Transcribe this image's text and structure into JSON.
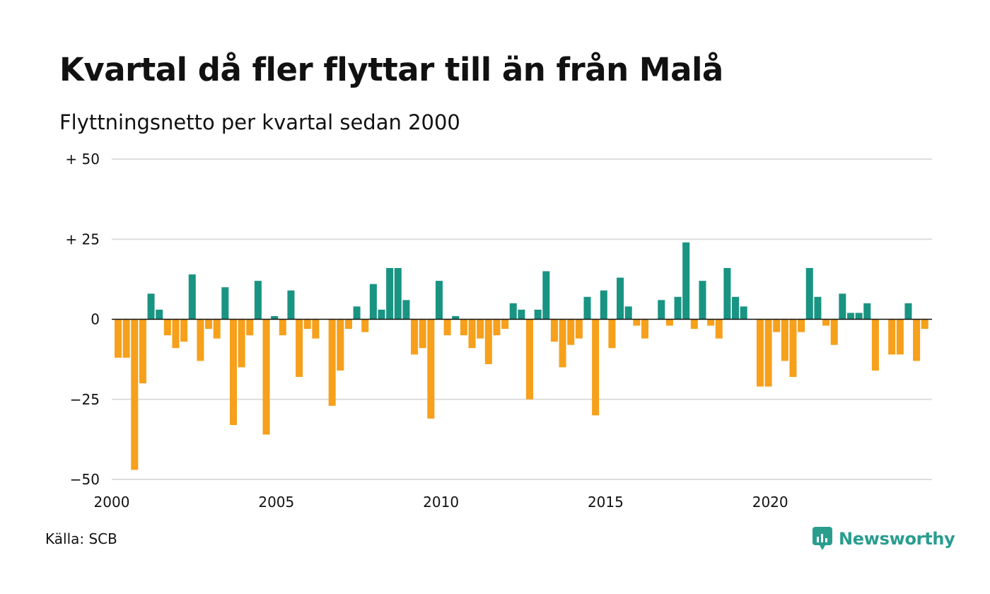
{
  "header": {
    "title": "Kvartal då fler flyttar till än från Malå",
    "subtitle": "Flyttningsnetto per kvartal sedan 2000"
  },
  "footer": {
    "source": "Källa: SCB",
    "brand": "Newsworthy"
  },
  "colors": {
    "positive": "#1a9482",
    "negative": "#f6a01b",
    "grid": "#dddddd",
    "zero_line": "#111111",
    "brand": "#2a9d8f"
  },
  "chart_data": {
    "type": "bar",
    "title": "Kvartal då fler flyttar till än från Malå",
    "subtitle": "Flyttningsnetto per kvartal sedan 2000",
    "x_start": "2000 Q1",
    "x_ticks": [
      2000,
      2005,
      2010,
      2015,
      2020
    ],
    "y_ticks": [
      {
        "value": 50,
        "label": "+ 50"
      },
      {
        "value": 25,
        "label": "+ 25"
      },
      {
        "value": 0,
        "label": "0"
      },
      {
        "value": -25,
        "label": "−25"
      },
      {
        "value": -50,
        "label": "−50"
      }
    ],
    "ylim": [
      -50,
      50
    ],
    "grid": true,
    "values": [
      -12,
      -12,
      -47,
      -20,
      8,
      3,
      -5,
      -9,
      -7,
      14,
      -13,
      -3,
      -6,
      10,
      -33,
      -15,
      -5,
      12,
      -36,
      1,
      -5,
      9,
      -18,
      -3,
      -6,
      0,
      -27,
      -16,
      -3,
      4,
      -4,
      11,
      3,
      16,
      16,
      6,
      -11,
      -9,
      -31,
      12,
      -5,
      1,
      -5,
      -9,
      -6,
      -14,
      -5,
      -3,
      5,
      3,
      -25,
      3,
      15,
      -7,
      -15,
      -8,
      -6,
      7,
      -30,
      9,
      -9,
      13,
      4,
      -2,
      -6,
      0,
      6,
      -2,
      7,
      24,
      -3,
      12,
      -2,
      -6,
      16,
      7,
      4,
      0,
      -21,
      -21,
      -4,
      -13,
      -18,
      -4,
      16,
      7,
      -2,
      -8,
      8,
      2,
      2,
      5,
      -16,
      0,
      -11,
      -11,
      5,
      -13,
      -3
    ]
  }
}
